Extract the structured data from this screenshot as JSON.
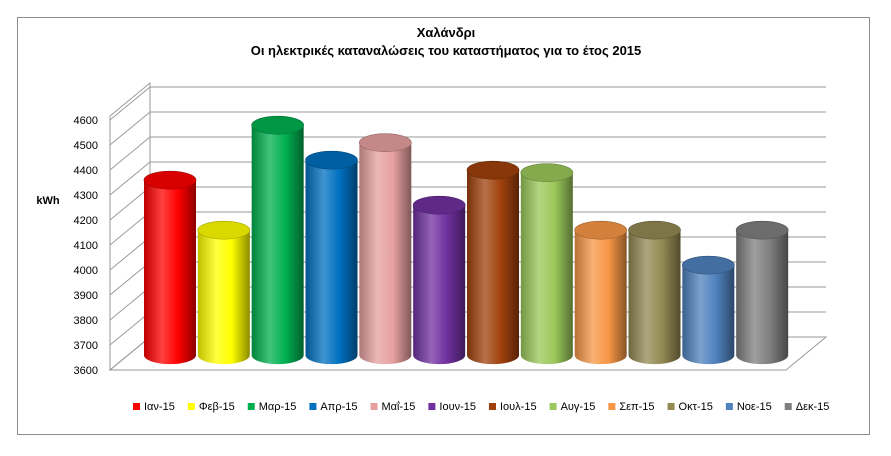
{
  "chart_data": {
    "type": "bar",
    "style": "3d-cylinder",
    "title": "Χαλάνδρι",
    "subtitle": "Οι ηλεκτρικές καταναλώσεις του καταστήματος για το έτος 2015",
    "ylabel": "kWh",
    "xlabel": "",
    "ylim": [
      3600,
      4600
    ],
    "ytick_step": 100,
    "ytick_labels": [
      "3600",
      "3700",
      "3800",
      "3900",
      "4000",
      "4100",
      "4200",
      "4300",
      "4400",
      "4500",
      "4600"
    ],
    "grid": true,
    "legend_position": "bottom",
    "categories": [
      "Ιαν-15",
      "Φεβ-15",
      "Μαρ-15",
      "Απρ-15",
      "Μαΐ-15",
      "Ιουν-15",
      "Ιουλ-15",
      "Αυγ-15",
      "Σεπ-15",
      "Οκτ-15",
      "Νοε-15",
      "Δεκ-15"
    ],
    "values": [
      4300,
      4100,
      4520,
      4380,
      4450,
      4200,
      4340,
      4330,
      4100,
      4100,
      3960,
      4100
    ],
    "colors": [
      "#ff0000",
      "#ffff00",
      "#00b050",
      "#0070c0",
      "#e6a0a0",
      "#7030a0",
      "#a0410c",
      "#9bc85a",
      "#f79646",
      "#938953",
      "#4f81bd",
      "#7f7f7f"
    ]
  }
}
